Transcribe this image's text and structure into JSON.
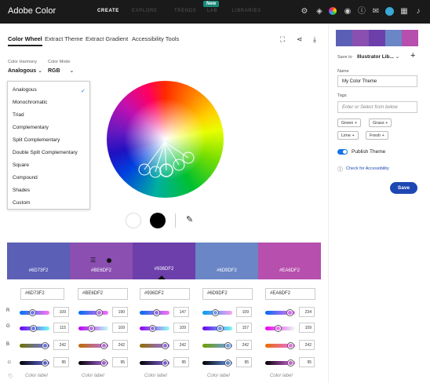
{
  "header": {
    "brand": "Adobe Color",
    "nav": [
      {
        "label": "CREATE",
        "active": true
      },
      {
        "label": "EXPLORE",
        "active": false
      },
      {
        "label": "TRENDS",
        "active": false
      },
      {
        "label": "LAB",
        "active": false
      },
      {
        "label": "LIBRARIES",
        "active": false
      }
    ],
    "new_badge": "New"
  },
  "tabs": [
    "Color Wheel",
    "Extract Theme",
    "Extract Gradient",
    "Accessibility Tools"
  ],
  "controls": {
    "harmony_label": "Color Harmony",
    "harmony_value": "Analogous",
    "mode_label": "Color Mode",
    "mode_value": "RGB"
  },
  "harmony_options": [
    "Analogous",
    "Monochromatic",
    "Triad",
    "Complementary",
    "Split Complementary",
    "Double Split Complementary",
    "Square",
    "Compound",
    "Shades",
    "Custom"
  ],
  "swatches": [
    {
      "hex": "#6D73F2",
      "color": "#5b5fb5",
      "r": 109,
      "g": 115,
      "b": 242,
      "brightness": 95
    },
    {
      "hex": "#BE6DF2",
      "color": "#8a4fb0",
      "r": 190,
      "g": 109,
      "b": 242,
      "brightness": 95
    },
    {
      "hex": "#936DF2",
      "color": "#6c3fab",
      "r": 147,
      "g": 109,
      "b": 242,
      "brightness": 95
    },
    {
      "hex": "#6D9DF2",
      "color": "#6a86c6",
      "r": 109,
      "g": 157,
      "b": 242,
      "brightness": 95
    },
    {
      "hex": "#EA6DF2",
      "color": "#b64fad",
      "r": 234,
      "g": 109,
      "b": 242,
      "brightness": 95
    }
  ],
  "row_labels": [
    "R",
    "G",
    "B"
  ],
  "color_label_placeholder": "Color label",
  "right_panel": {
    "save_to_label": "Save to",
    "library": "Illustrator Lib...",
    "name_label": "Name",
    "name_value": "My Color Theme",
    "tags_label": "Tags",
    "tags_placeholder": "Enter or Select from below",
    "tags": [
      "Green",
      "Grass",
      "Lime",
      "Fresh"
    ],
    "publish_label": "Publish Theme",
    "accessibility_link": "Check for Accessibility",
    "save_button": "Save"
  }
}
